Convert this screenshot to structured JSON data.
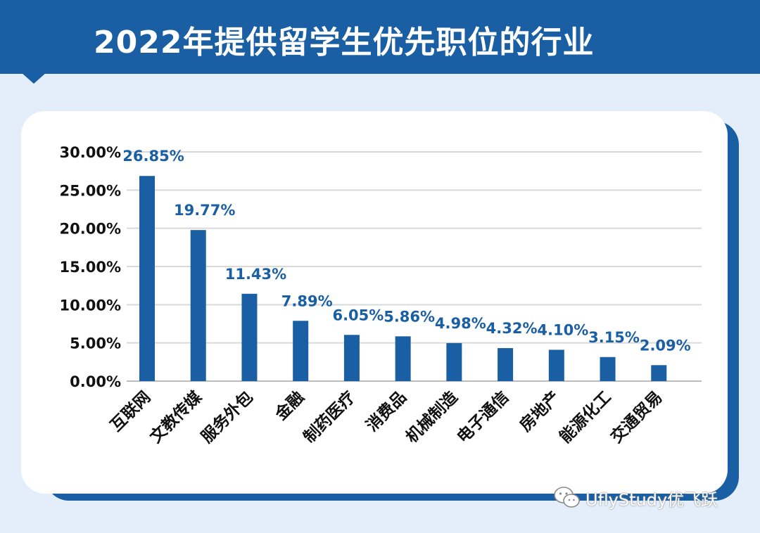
{
  "header": {
    "title": "2022年提供留学生优先职位的行业"
  },
  "watermark": {
    "text": "UflyStudy优飞跃",
    "icon": "wechat-icon"
  },
  "colors": {
    "bar": "#1a5fa3",
    "label": "#1a5fa3",
    "header": "#1a5fa3",
    "background": "#e4eefa"
  },
  "chart_data": {
    "type": "bar",
    "title": "2022年提供留学生优先职位的行业",
    "categories": [
      "互联网",
      "文教传媒",
      "服务外包",
      "金融",
      "制药医疗",
      "消费品",
      "机械制造",
      "电子通信",
      "房地产",
      "能源化工",
      "交通贸易"
    ],
    "values": [
      26.85,
      19.77,
      11.43,
      7.89,
      6.05,
      5.86,
      4.98,
      4.32,
      4.1,
      3.15,
      2.09
    ],
    "value_labels": [
      "26.85%",
      "19.77%",
      "11.43%",
      "7.89%",
      "6.05%",
      "5.86%",
      "4.98%",
      "4.32%",
      "4.10%",
      "3.15%",
      "2.09%"
    ],
    "yticks": [
      0,
      5,
      10,
      15,
      20,
      25,
      30
    ],
    "ytick_labels": [
      "0.00%",
      "5.00%",
      "10.00%",
      "15.00%",
      "20.00%",
      "25.00%",
      "30.00%"
    ],
    "ylim": [
      0,
      30
    ],
    "xlabel": "",
    "ylabel": "",
    "grid": true,
    "legend": "none"
  }
}
